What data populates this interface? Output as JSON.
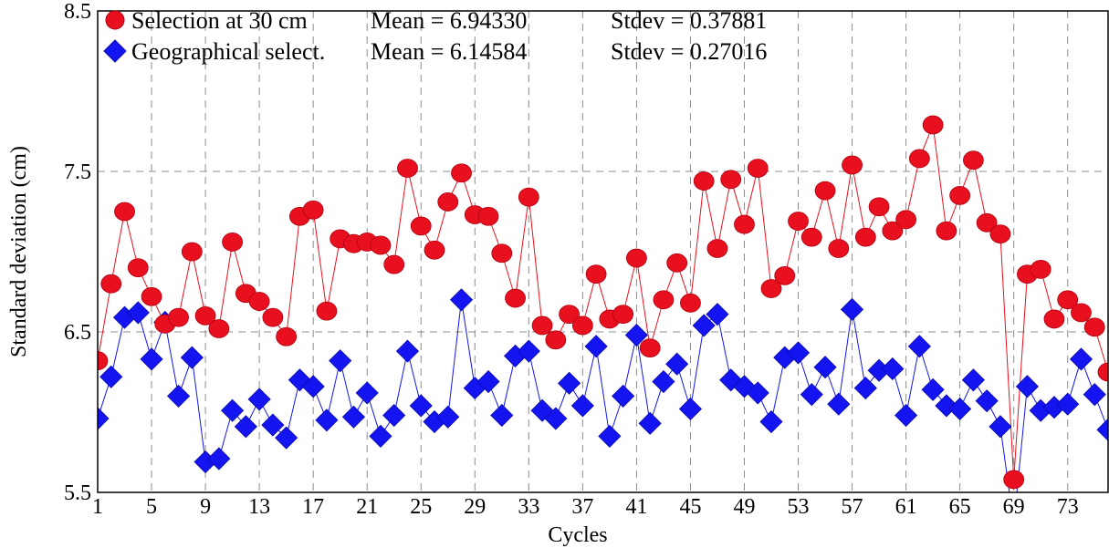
{
  "chart_data": {
    "type": "line",
    "xlabel": "Cycles",
    "ylabel": "Standard deviation (cm)",
    "xlim": [
      1,
      76
    ],
    "ylim": [
      5.5,
      8.5
    ],
    "xticks": [
      1,
      5,
      9,
      13,
      17,
      21,
      25,
      29,
      33,
      37,
      41,
      45,
      49,
      53,
      57,
      61,
      65,
      69,
      73
    ],
    "yticks": [
      5.5,
      6.5,
      7.5,
      8.5
    ],
    "ytick_labels": [
      "5.5",
      "6.5",
      "7.5",
      "8.5"
    ],
    "grid": true,
    "legend_position": "top-left",
    "x": [
      1,
      2,
      3,
      4,
      5,
      6,
      7,
      8,
      9,
      10,
      11,
      12,
      13,
      14,
      15,
      16,
      17,
      18,
      19,
      20,
      21,
      22,
      23,
      24,
      25,
      26,
      27,
      28,
      29,
      30,
      31,
      32,
      33,
      34,
      35,
      36,
      37,
      38,
      39,
      40,
      41,
      42,
      43,
      44,
      45,
      46,
      47,
      48,
      49,
      50,
      51,
      52,
      53,
      54,
      55,
      56,
      57,
      58,
      59,
      60,
      61,
      62,
      63,
      64,
      65,
      66,
      67,
      68,
      69,
      70,
      71,
      72,
      73,
      74,
      75,
      76
    ],
    "series": [
      {
        "name": "Selection at 30 cm",
        "mean_label": "Mean = 6.94330",
        "stdev_label": "Stdev = 0.37881",
        "color": "#e8101e",
        "marker": "circle",
        "values": [
          6.32,
          6.8,
          7.25,
          6.9,
          6.72,
          6.55,
          6.59,
          7.0,
          6.6,
          6.52,
          7.06,
          6.74,
          6.69,
          6.59,
          6.47,
          7.22,
          7.26,
          6.63,
          7.08,
          7.05,
          7.06,
          7.04,
          6.92,
          7.52,
          7.16,
          7.01,
          7.31,
          7.49,
          7.23,
          7.22,
          6.99,
          6.71,
          7.34,
          6.54,
          6.45,
          6.61,
          6.54,
          6.86,
          6.58,
          6.61,
          6.96,
          6.4,
          6.7,
          6.93,
          6.68,
          7.44,
          7.02,
          7.45,
          7.17,
          7.52,
          6.77,
          6.85,
          7.19,
          7.09,
          7.38,
          7.02,
          7.54,
          7.09,
          7.28,
          7.13,
          7.2,
          7.58,
          7.79,
          7.13,
          7.35,
          7.57,
          7.18,
          7.11,
          5.58,
          6.86,
          6.89,
          6.58,
          6.7,
          6.62,
          6.53,
          6.25
        ]
      },
      {
        "name": "Geographical select.",
        "mean_label": "Mean = 6.14584",
        "stdev_label": "Stdev = 0.27016",
        "color": "#1414f0",
        "marker": "diamond",
        "values": [
          5.96,
          6.22,
          6.59,
          6.62,
          6.33,
          6.56,
          6.1,
          6.34,
          5.69,
          5.71,
          6.01,
          5.91,
          6.08,
          5.92,
          5.84,
          6.2,
          6.16,
          5.95,
          6.32,
          5.97,
          6.12,
          5.85,
          5.98,
          6.38,
          6.04,
          5.94,
          5.97,
          6.7,
          6.15,
          6.19,
          5.98,
          6.35,
          6.38,
          6.01,
          5.96,
          6.18,
          6.04,
          6.41,
          5.85,
          6.1,
          6.48,
          5.93,
          6.19,
          6.3,
          6.02,
          6.54,
          6.61,
          6.2,
          6.16,
          6.12,
          5.94,
          6.34,
          6.37,
          6.11,
          6.28,
          6.05,
          6.64,
          6.15,
          6.26,
          6.27,
          5.98,
          6.41,
          6.14,
          6.04,
          6.02,
          6.2,
          6.07,
          5.91,
          5.3,
          6.16,
          6.01,
          6.03,
          6.05,
          6.33,
          6.11,
          5.89
        ]
      }
    ]
  }
}
